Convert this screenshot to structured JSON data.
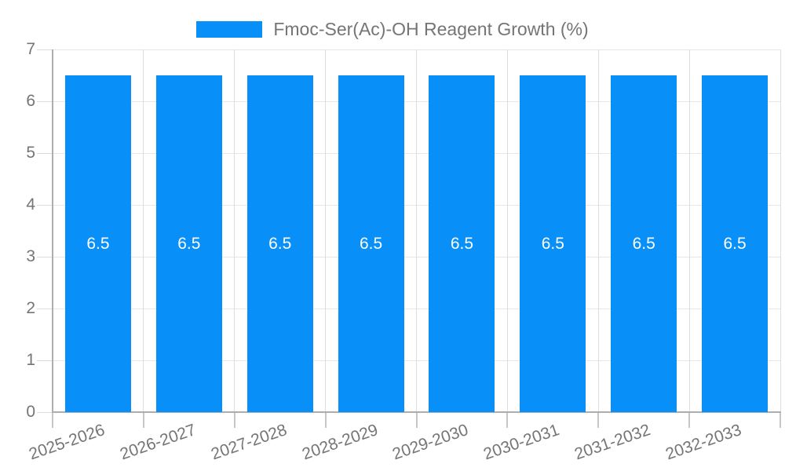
{
  "legend": {
    "label": "Fmoc-Ser(Ac)-OH Reagent Growth (%)"
  },
  "chart_data": {
    "type": "bar",
    "title": "Fmoc-Ser(Ac)-OH Reagent Growth (%)",
    "categories": [
      "2025-2026",
      "2026-2027",
      "2027-2028",
      "2028-2029",
      "2029-2030",
      "2030-2031",
      "2031-2032",
      "2032-2033"
    ],
    "values": [
      6.5,
      6.5,
      6.5,
      6.5,
      6.5,
      6.5,
      6.5,
      6.5
    ],
    "bar_value_labels": [
      "6.5",
      "6.5",
      "6.5",
      "6.5",
      "6.5",
      "6.5",
      "6.5",
      "6.5"
    ],
    "xlabel": "",
    "ylabel": "",
    "ylim": [
      0,
      7
    ],
    "yticks": [
      0,
      1,
      2,
      3,
      4,
      5,
      6,
      7
    ],
    "grid": true,
    "legend_position": "top-center",
    "colors": {
      "bar": "#0890F8",
      "bar_label": "#FFFFFF",
      "axis_text": "#757575"
    }
  }
}
